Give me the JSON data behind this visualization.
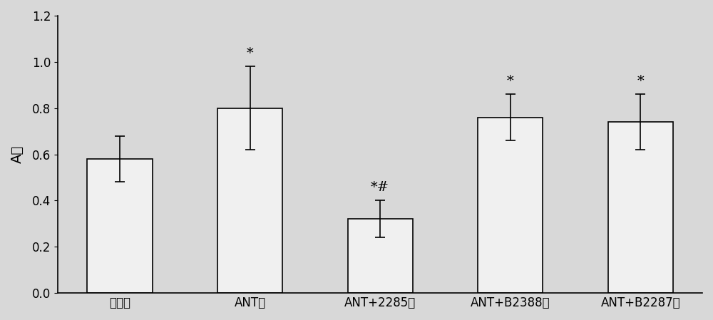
{
  "categories": [
    "对照组",
    "ANT组",
    "ANT+2285组",
    "ANT+B2388组",
    "ANT+B2287组"
  ],
  "values": [
    0.58,
    0.8,
    0.32,
    0.76,
    0.74
  ],
  "errors": [
    0.1,
    0.18,
    0.08,
    0.1,
    0.12
  ],
  "annotations": [
    "",
    "*",
    "*#",
    "*",
    "*"
  ],
  "bar_color": "#f0f0f0",
  "bar_edgecolor": "#000000",
  "ylabel": "A值",
  "ylim": [
    0,
    1.2
  ],
  "yticks": [
    0,
    0.2,
    0.4,
    0.6,
    0.8,
    1.0,
    1.2
  ],
  "background_color": "#d8d8d8",
  "annotation_fontsize": 14,
  "ylabel_fontsize": 14,
  "tick_fontsize": 12
}
